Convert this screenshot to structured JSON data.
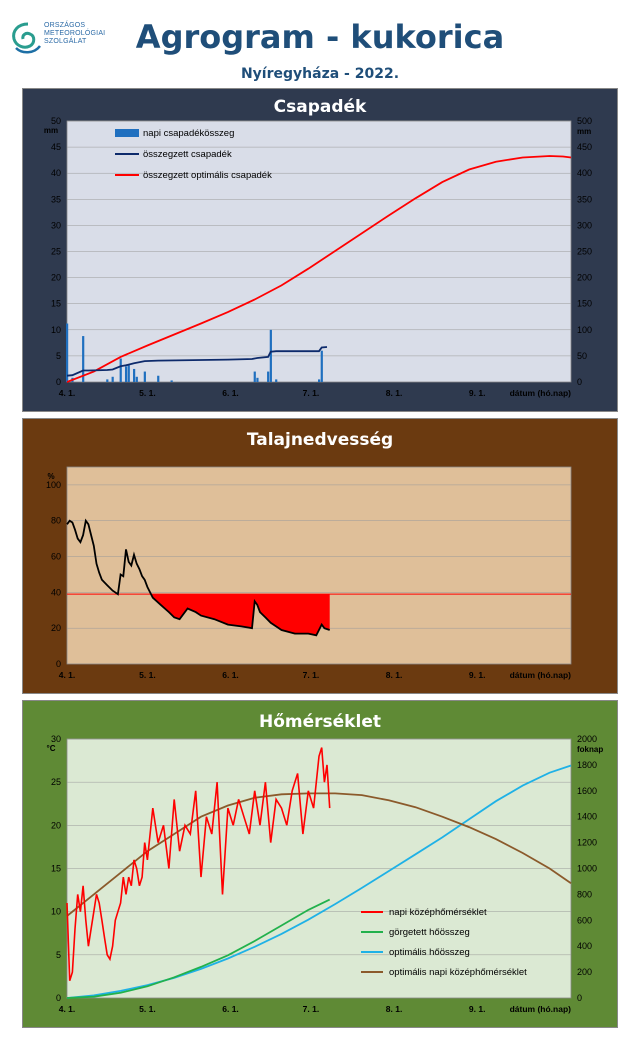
{
  "header": {
    "title": "Agrogram - kukorica",
    "subtitle": "Nyíregyháza - 2022.",
    "logo_lines": [
      "ORSZÁGOS",
      "METEOROLÓGIAI",
      "SZOLGÁLAT"
    ]
  },
  "chart_data": [
    {
      "type": "bar+line",
      "title": "Csapadék",
      "x_ticks": [
        "4. 1.",
        "5. 1.",
        "6. 1.",
        "7. 1.",
        "8. 1.",
        "9. 1."
      ],
      "xlabel": "dátum (hó.nap)",
      "y_left": {
        "unit": "mm",
        "lim": [
          0,
          50
        ],
        "ticks": [
          0,
          5,
          10,
          15,
          20,
          25,
          30,
          35,
          40,
          45,
          50
        ]
      },
      "y_right": {
        "unit": "mm",
        "lim": [
          0,
          500
        ],
        "ticks": [
          0,
          50,
          100,
          150,
          200,
          250,
          300,
          350,
          400,
          450,
          500
        ]
      },
      "colors": {
        "background": "#2f3a4f",
        "plot": "#d9dde8",
        "daily": "#1f6fbf",
        "cumulative": "#0d2a6b",
        "optimal": "#ff0000"
      },
      "series": [
        {
          "name": "napi csapadékösszeg",
          "axis": "left",
          "kind": "bar",
          "x_day": [
            0,
            2,
            6,
            15,
            17,
            20,
            22,
            23,
            25,
            26,
            29,
            34,
            39,
            70,
            71,
            75,
            76,
            78,
            94,
            95
          ],
          "values": [
            11.2,
            0.8,
            8.8,
            0.5,
            1.0,
            4.5,
            3.0,
            3.2,
            2.5,
            1.0,
            2.0,
            1.2,
            0.3,
            2.0,
            0.8,
            2.0,
            10.0,
            0.5,
            0.5,
            6.0
          ]
        },
        {
          "name": "összegzett csapadék",
          "axis": "right",
          "kind": "line",
          "x_day": [
            0,
            2,
            6,
            8,
            15,
            17,
            20,
            22,
            25,
            29,
            34,
            60,
            69,
            71,
            75,
            76,
            78,
            94,
            95,
            97
          ],
          "values": [
            12,
            13,
            22,
            22,
            23,
            24,
            30,
            32,
            36,
            40,
            41,
            43,
            44,
            46,
            48,
            58,
            59,
            59,
            66,
            67
          ]
        },
        {
          "name": "összegzett optimális csapadék",
          "axis": "right",
          "kind": "line",
          "x_day": [
            0,
            10,
            20,
            30,
            40,
            50,
            60,
            70,
            80,
            90,
            100,
            110,
            120,
            130,
            140,
            150,
            160,
            170,
            180,
            185,
            188
          ],
          "values": [
            0,
            20,
            48,
            70,
            91,
            112,
            134,
            158,
            185,
            217,
            251,
            285,
            319,
            352,
            383,
            407,
            422,
            430,
            433,
            432,
            430
          ]
        }
      ]
    },
    {
      "type": "line",
      "title": "Talajnedvesség",
      "x_ticks": [
        "4. 1.",
        "5. 1.",
        "6. 1.",
        "7. 1.",
        "8. 1.",
        "9. 1."
      ],
      "xlabel": "dátum (hó.nap)",
      "y_left": {
        "unit": "%",
        "lim": [
          0,
          110
        ],
        "ticks": [
          0,
          20,
          40,
          60,
          80,
          100
        ]
      },
      "threshold": 39,
      "colors": {
        "background": "#6b3a10",
        "plot": "#dfbf99",
        "line": "#000000",
        "deficit": "#ff0000",
        "threshold": "#ff0000"
      },
      "series": [
        {
          "name": "talajnedvesség",
          "kind": "line",
          "x_day": [
            0,
            1,
            2,
            3,
            4,
            5,
            6,
            7,
            8,
            9,
            10,
            11,
            12,
            13,
            15,
            17,
            19,
            20,
            21,
            22,
            23,
            24,
            25,
            26,
            27,
            28,
            29,
            30,
            32,
            35,
            38,
            40,
            42,
            45,
            48,
            50,
            55,
            60,
            65,
            69,
            70,
            71,
            72,
            74,
            76,
            78,
            80,
            85,
            90,
            93,
            95,
            96,
            98
          ],
          "values": [
            78,
            80,
            79,
            75,
            70,
            68,
            72,
            80,
            78,
            72,
            66,
            56,
            51,
            47,
            44,
            41,
            39,
            50,
            49,
            64,
            57,
            55,
            61,
            56,
            53,
            49,
            47,
            43,
            37,
            33,
            29,
            26,
            25,
            31,
            29,
            27,
            25,
            22,
            21,
            20,
            35,
            33,
            29,
            26,
            23,
            21,
            19,
            17,
            17,
            16,
            22,
            20,
            19
          ]
        }
      ]
    },
    {
      "type": "line",
      "title": "Hőmérséklet",
      "x_ticks": [
        "4. 1.",
        "5. 1.",
        "6. 1.",
        "7. 1.",
        "8. 1.",
        "9. 1."
      ],
      "xlabel": "dátum (hó.nap)",
      "y_left": {
        "unit": "°C",
        "lim": [
          0,
          30
        ],
        "ticks": [
          0,
          5,
          10,
          15,
          20,
          25,
          30
        ]
      },
      "y_right": {
        "unit": "foknap",
        "lim": [
          0,
          2000
        ],
        "ticks": [
          0,
          200,
          400,
          600,
          800,
          1000,
          1200,
          1400,
          1600,
          1800,
          2000
        ]
      },
      "colors": {
        "background": "#5f8a35",
        "plot": "#dbe9d3",
        "daily": "#ff0000",
        "rolling": "#22b14c",
        "optimal_sum": "#1fb1e6",
        "optimal_daily": "#8b5a2b"
      },
      "series": [
        {
          "name": "napi középhőmérséklet",
          "axis": "left",
          "kind": "line",
          "x_day": [
            0,
            1,
            2,
            3,
            4,
            5,
            6,
            7,
            8,
            9,
            10,
            11,
            12,
            13,
            14,
            15,
            16,
            17,
            18,
            19,
            20,
            21,
            22,
            23,
            24,
            25,
            26,
            27,
            28,
            29,
            30,
            32,
            34,
            36,
            38,
            40,
            42,
            44,
            46,
            48,
            50,
            52,
            54,
            56,
            58,
            60,
            62,
            64,
            66,
            68,
            70,
            72,
            74,
            76,
            78,
            80,
            82,
            84,
            86,
            88,
            90,
            92,
            94,
            95,
            96,
            97,
            98
          ],
          "values": [
            11,
            2,
            3,
            8,
            12,
            10,
            13,
            9,
            6,
            8,
            10,
            12,
            11,
            9,
            7,
            5,
            4.5,
            6,
            9,
            10,
            11,
            14,
            12,
            14,
            13,
            16,
            15,
            13,
            14,
            18,
            16,
            22,
            18,
            20,
            15,
            23,
            17,
            20,
            19,
            24,
            14,
            21,
            19,
            25,
            12,
            22,
            20,
            23,
            21,
            19,
            24,
            20,
            25,
            18,
            23,
            22,
            20,
            24,
            26,
            19,
            24,
            22,
            28,
            29,
            25,
            27,
            22
          ]
        },
        {
          "name": "görgetett hőösszeg",
          "axis": "right",
          "kind": "line",
          "x_day": [
            0,
            10,
            20,
            30,
            40,
            50,
            60,
            70,
            80,
            90,
            98
          ],
          "values": [
            0,
            10,
            40,
            90,
            160,
            240,
            330,
            440,
            560,
            680,
            760
          ]
        },
        {
          "name": "optimális hőösszeg",
          "axis": "right",
          "kind": "line",
          "x_day": [
            0,
            10,
            20,
            30,
            40,
            50,
            60,
            70,
            80,
            90,
            100,
            110,
            120,
            130,
            140,
            150,
            160,
            170,
            180,
            188
          ],
          "values": [
            0,
            20,
            55,
            100,
            155,
            225,
            305,
            395,
            495,
            605,
            725,
            850,
            980,
            1110,
            1240,
            1380,
            1520,
            1640,
            1740,
            1795
          ]
        },
        {
          "name": "optimális napi középhőmérséklet",
          "axis": "left",
          "kind": "line",
          "x_day": [
            0,
            10,
            20,
            30,
            40,
            50,
            60,
            70,
            80,
            90,
            100,
            110,
            120,
            130,
            140,
            150,
            160,
            170,
            180,
            188
          ],
          "values": [
            9.5,
            12,
            14.5,
            17,
            19,
            21,
            22.3,
            23.2,
            23.6,
            23.7,
            23.7,
            23.5,
            22.9,
            22.1,
            21,
            19.8,
            18.4,
            16.8,
            15,
            13.3
          ]
        }
      ]
    }
  ]
}
